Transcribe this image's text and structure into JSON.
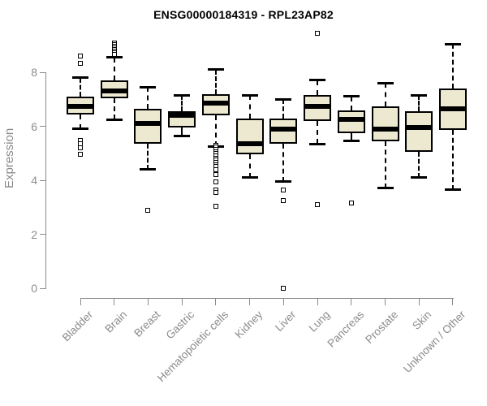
{
  "title": "ENSG00000184319 - RPL23AP82",
  "ylabel": "Expression",
  "colors": {
    "box_fill": "#EDE8D0",
    "box_border": "#000000",
    "median": "#000000",
    "axis": "#8B8B8B",
    "tick_label": "#8B8B8B",
    "title": "#000000",
    "background": "#FFFFFF"
  },
  "chart_data": {
    "type": "boxplot",
    "title": "ENSG00000184319 - RPL23AP82",
    "xlabel": "",
    "ylabel": "Expression",
    "ylim": [
      0,
      9.6
    ],
    "yticks": [
      0,
      2,
      4,
      6,
      8
    ],
    "grid": false,
    "legend": "none",
    "categories": [
      "Bladder",
      "Brain",
      "Breast",
      "Gastric",
      "Hematopoietic cells",
      "Kidney",
      "Liver",
      "Lung",
      "Pancreas",
      "Prostate",
      "Skin",
      "Unknown / Other"
    ],
    "series": [
      {
        "category": "Bladder",
        "whisker_low": 5.9,
        "q1": 6.45,
        "median": 6.75,
        "q3": 7.1,
        "whisker_high": 7.8,
        "outliers": [
          8.6,
          8.33,
          5.47,
          5.35,
          5.2,
          4.95
        ]
      },
      {
        "category": "Brain",
        "whisker_low": 6.25,
        "q1": 7.05,
        "median": 7.32,
        "q3": 7.7,
        "whisker_high": 8.55,
        "outliers": [
          9.08,
          9.02,
          8.96,
          8.9,
          8.84,
          8.78,
          8.72,
          8.66
        ]
      },
      {
        "category": "Breast",
        "whisker_low": 4.4,
        "q1": 5.35,
        "median": 6.1,
        "q3": 6.65,
        "whisker_high": 7.45,
        "outliers": [
          2.9
        ]
      },
      {
        "category": "Gastric",
        "whisker_low": 5.65,
        "q1": 5.95,
        "median": 6.4,
        "q3": 6.55,
        "whisker_high": 7.15,
        "outliers": []
      },
      {
        "category": "Hematopoietic cells",
        "whisker_low": 5.25,
        "q1": 6.4,
        "median": 6.85,
        "q3": 7.2,
        "whisker_high": 8.1,
        "outliers": [
          5.3,
          5.22,
          5.14,
          5.06,
          4.98,
          4.9,
          4.82,
          4.74,
          4.66,
          4.58,
          4.5,
          4.4,
          4.2,
          3.95,
          3.65,
          3.55,
          3.05
        ]
      },
      {
        "category": "Kidney",
        "whisker_low": 4.1,
        "q1": 4.97,
        "median": 5.35,
        "q3": 6.28,
        "whisker_high": 7.15,
        "outliers": []
      },
      {
        "category": "Liver",
        "whisker_low": 3.95,
        "q1": 5.35,
        "median": 5.9,
        "q3": 6.3,
        "whisker_high": 7.0,
        "outliers": [
          3.65,
          3.25,
          0.0
        ]
      },
      {
        "category": "Lung",
        "whisker_low": 5.35,
        "q1": 6.2,
        "median": 6.75,
        "q3": 7.15,
        "whisker_high": 7.7,
        "outliers": [
          9.45,
          3.1
        ]
      },
      {
        "category": "Pancreas",
        "whisker_low": 5.45,
        "q1": 5.75,
        "median": 6.25,
        "q3": 6.6,
        "whisker_high": 7.1,
        "outliers": [
          3.15
        ]
      },
      {
        "category": "Prostate",
        "whisker_low": 3.7,
        "q1": 5.45,
        "median": 5.9,
        "q3": 6.75,
        "whisker_high": 7.6,
        "outliers": []
      },
      {
        "category": "Skin",
        "whisker_low": 4.1,
        "q1": 5.05,
        "median": 5.95,
        "q3": 6.55,
        "whisker_high": 7.15,
        "outliers": []
      },
      {
        "category": "Unknown / Other",
        "whisker_low": 3.65,
        "q1": 5.85,
        "median": 6.65,
        "q3": 7.4,
        "whisker_high": 9.05,
        "outliers": []
      }
    ]
  }
}
